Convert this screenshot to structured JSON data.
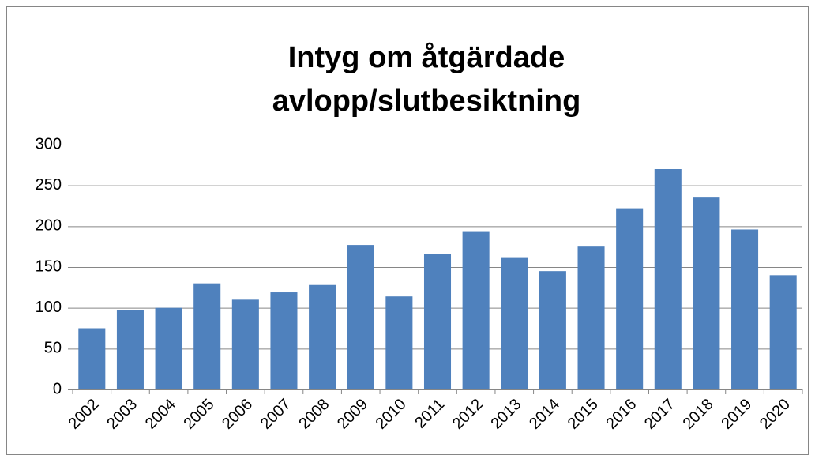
{
  "chart_data": {
    "type": "bar",
    "title": [
      "Intyg om åtgärdade",
      "avlopp/slutbesiktning"
    ],
    "categories": [
      "2002",
      "2003",
      "2004",
      "2005",
      "2006",
      "2007",
      "2008",
      "2009",
      "2010",
      "2011",
      "2012",
      "2013",
      "2014",
      "2015",
      "2016",
      "2017",
      "2018",
      "2019",
      "2020"
    ],
    "values": [
      75,
      97,
      100,
      130,
      110,
      119,
      128,
      177,
      114,
      166,
      193,
      162,
      145,
      175,
      222,
      270,
      236,
      196,
      140
    ],
    "color": "#4f81bd",
    "ylim": [
      0,
      300
    ],
    "yticks": [
      0,
      50,
      100,
      150,
      200,
      250,
      300
    ],
    "grid": true
  }
}
